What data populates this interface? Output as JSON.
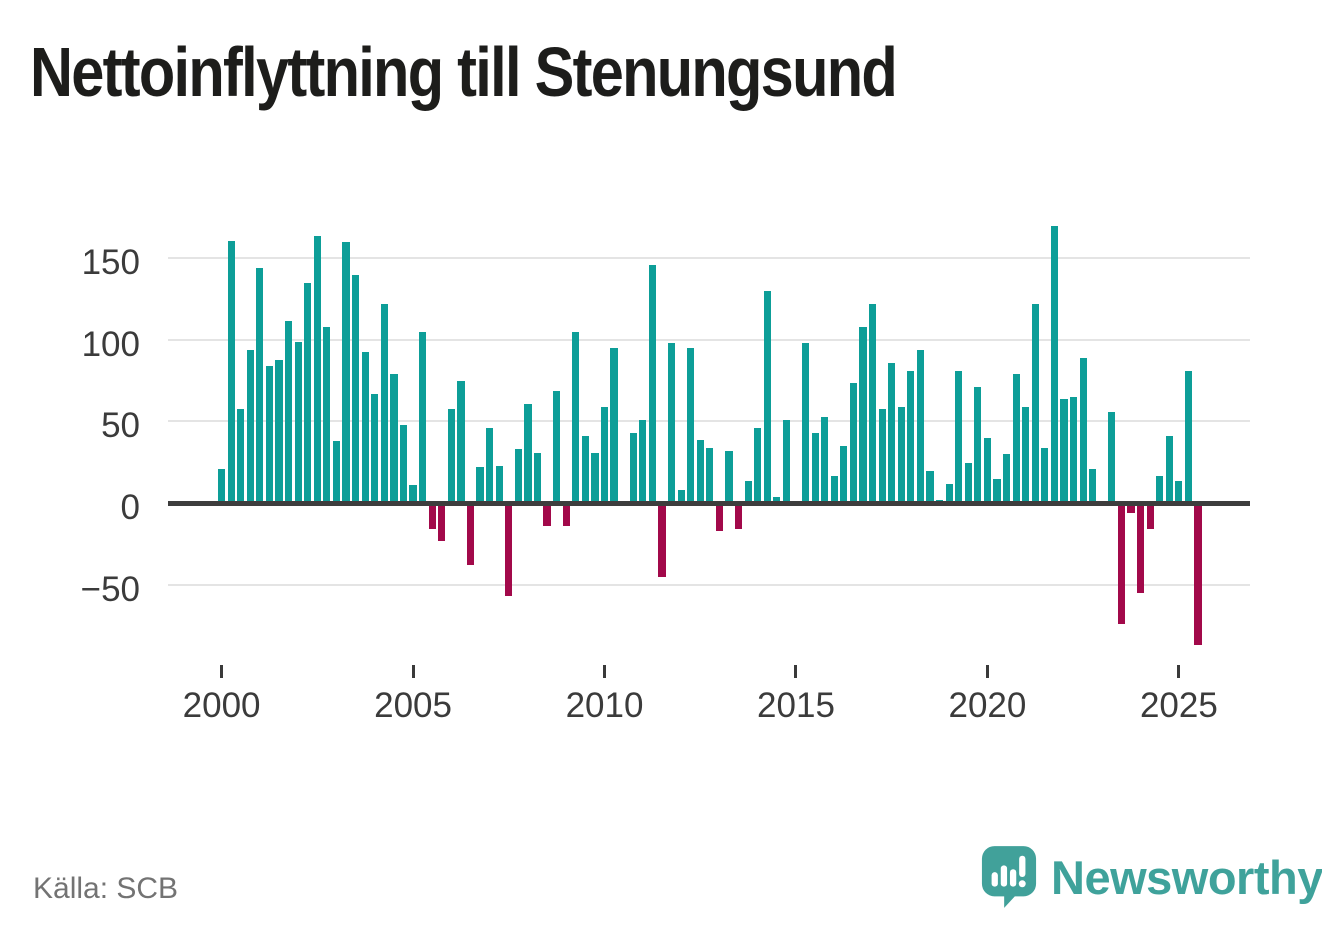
{
  "title": "Nettoinflyttning till Stenungsund",
  "source": {
    "text": "Källa: SCB"
  },
  "brand": {
    "name": "Newsworthy",
    "color": "#3fa29b",
    "icon": "speech-bubble-bar-chart-icon"
  },
  "chart_data": {
    "type": "bar",
    "title": "Nettoinflyttning till Stenungsund",
    "xlabel": "",
    "ylabel": "",
    "frequency": "quarterly",
    "start_year": 2000,
    "start_quarter": 1,
    "values": [
      22,
      162,
      59,
      95,
      145,
      85,
      89,
      113,
      100,
      136,
      165,
      109,
      39,
      161,
      141,
      94,
      68,
      123,
      80,
      49,
      12,
      106,
      -15,
      -22,
      59,
      76,
      -37,
      23,
      47,
      24,
      -56,
      34,
      62,
      32,
      -13,
      70,
      -13,
      106,
      42,
      32,
      60,
      96,
      0,
      44,
      52,
      147,
      -44,
      99,
      9,
      96,
      40,
      35,
      -16,
      33,
      -15,
      15,
      47,
      131,
      5,
      52,
      0,
      99,
      44,
      54,
      18,
      36,
      75,
      109,
      123,
      59,
      87,
      60,
      82,
      95,
      21,
      3,
      13,
      82,
      26,
      72,
      41,
      16,
      31,
      80,
      60,
      123,
      35,
      171,
      65,
      66,
      90,
      22,
      0,
      57,
      -73,
      -5,
      -54,
      -15,
      18,
      42,
      15,
      82,
      -86
    ],
    "y_ticks": [
      150,
      100,
      50,
      0,
      -50
    ],
    "y_tick_labels": [
      "150",
      "100",
      "50",
      "0",
      "−50"
    ],
    "x_tick_years": [
      2000,
      2005,
      2010,
      2015,
      2020,
      2025
    ],
    "x_tick_labels": [
      "2000",
      "2005",
      "2010",
      "2015",
      "2020",
      "2025"
    ],
    "ylim": [
      -90,
      175
    ],
    "grid": true,
    "legend": false,
    "positive_color": "#0d9e98",
    "negative_color": "#a2094a"
  }
}
